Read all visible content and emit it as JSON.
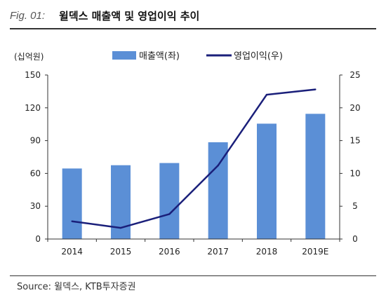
{
  "figure": {
    "label": "Fig. 01:",
    "title": "윌덱스 매출액 및 영업이익 추이"
  },
  "source": "Source:  윌덱스, KTB투자증권",
  "chart_data": {
    "type": "bar",
    "categories": [
      "2014",
      "2015",
      "2016",
      "2017",
      "2018",
      "2019E"
    ],
    "series": [
      {
        "name": "매출액(좌)",
        "type": "bar",
        "axis": "left",
        "color": "#5b8fd6",
        "values": [
          64.5,
          67.5,
          69.5,
          88.5,
          105.5,
          114.5
        ]
      },
      {
        "name": "영업이익(우)",
        "type": "line",
        "axis": "right",
        "color": "#1a1f7a",
        "values": [
          2.7,
          1.7,
          3.8,
          11.2,
          22.0,
          22.8
        ]
      }
    ],
    "ylabel": "(십억원)",
    "ylim": [
      0,
      150
    ],
    "yticks": [
      "0",
      "30",
      "60",
      "90",
      "120",
      "150"
    ],
    "y2lim": [
      0,
      25
    ],
    "y2ticks": [
      "0",
      "5",
      "10",
      "15",
      "20",
      "25"
    ],
    "legend": "top-center",
    "grid": false
  }
}
